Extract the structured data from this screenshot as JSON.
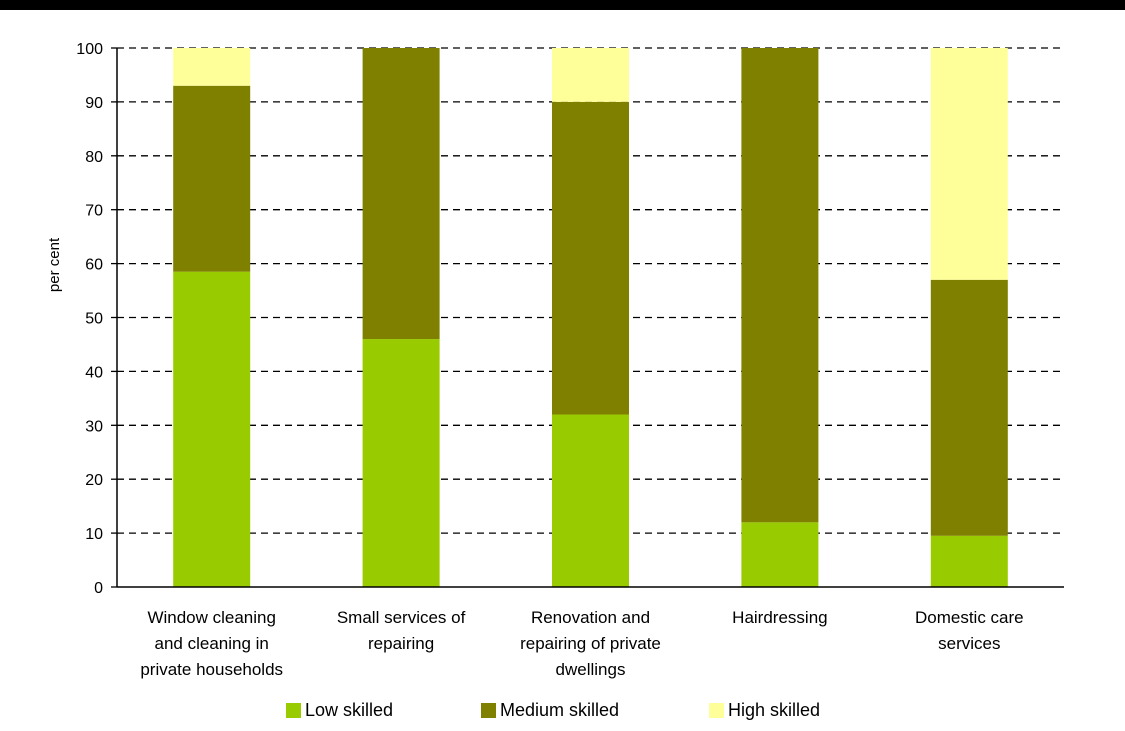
{
  "chart_data": {
    "type": "bar",
    "stacked": true,
    "title": "",
    "xlabel": "",
    "ylabel": "per cent",
    "ylim": [
      0,
      100
    ],
    "yticks": [
      0,
      10,
      20,
      30,
      40,
      50,
      60,
      70,
      80,
      90,
      100
    ],
    "grid": true,
    "legend_position": "bottom",
    "categories": [
      [
        "Window cleaning",
        "and cleaning in",
        "private households"
      ],
      [
        "Small services of",
        "repairing"
      ],
      [
        "Renovation and",
        "repairing of private",
        "dwellings"
      ],
      [
        "Hairdressing"
      ],
      [
        "Domestic care",
        "services"
      ]
    ],
    "series": [
      {
        "name": "Low skilled",
        "color": "#99cc00",
        "values": [
          58.5,
          46,
          32,
          12,
          9.5
        ]
      },
      {
        "name": "Medium skilled",
        "color": "#808000",
        "values": [
          34.5,
          54,
          58,
          88,
          47.5
        ]
      },
      {
        "name": "High skilled",
        "color": "#ffff99",
        "values": [
          7,
          0,
          10,
          0,
          43
        ]
      }
    ]
  }
}
